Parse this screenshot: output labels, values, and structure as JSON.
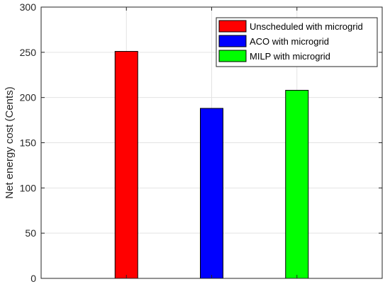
{
  "chart_data": {
    "type": "bar",
    "title": "",
    "xlabel": "",
    "ylabel": "Net energy cost (Cents)",
    "ylim": [
      0,
      300
    ],
    "yticks": [
      0,
      50,
      100,
      150,
      200,
      250,
      300
    ],
    "grid": true,
    "legend_position": "top-right",
    "series": [
      {
        "name": "Unscheduled with microgrid",
        "value": 251,
        "color": "#ff0000"
      },
      {
        "name": "ACO with microgrid",
        "value": 188,
        "color": "#0000ff"
      },
      {
        "name": "MILP with microgrid",
        "value": 208,
        "color": "#00ff00"
      }
    ]
  }
}
